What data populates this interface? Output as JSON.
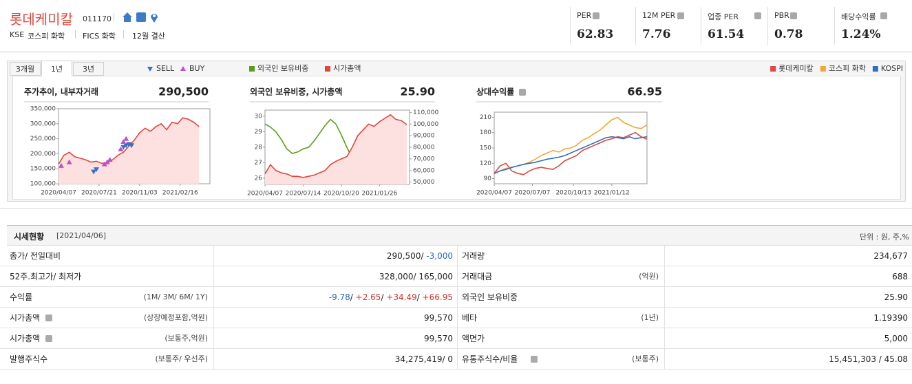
{
  "header": {
    "name": "롯데케미칼",
    "code": "011170",
    "market": "KSE",
    "sector": "코스피 화학",
    "fics": "FICS 화학",
    "fiscal": "12월 결산"
  },
  "stats": [
    {
      "label": "PER",
      "value": "62.83"
    },
    {
      "label": "12M PER",
      "value": "7.76"
    },
    {
      "label": "업종 PER",
      "value": "61.54"
    },
    {
      "label": "PBR",
      "value": "0.78"
    },
    {
      "label": "배당수익률",
      "value": "1.24%"
    }
  ],
  "tabs": [
    "3개월",
    "1년",
    "3년"
  ],
  "active_tab": 1,
  "chart_data": [
    {
      "type": "line",
      "title": "주가추이, 내부자거래",
      "headline": "290,500",
      "x": [
        0,
        2,
        4,
        6,
        8,
        10,
        12,
        14,
        16,
        18,
        20,
        22,
        24,
        26,
        28,
        30,
        32,
        34,
        36,
        38,
        40,
        42,
        44,
        46,
        48,
        50,
        52
      ],
      "xlim": [
        0,
        56
      ],
      "xticks": [
        {
          "value": 0,
          "label": "2020/04/07"
        },
        {
          "value": 15,
          "label": "2020/07/21"
        },
        {
          "value": 30,
          "label": "2020/11/03"
        },
        {
          "value": 45,
          "label": "2021/02/16"
        }
      ],
      "ylim": [
        100000,
        350000
      ],
      "yticks": [
        {
          "value": 100000,
          "label": "100,000"
        },
        {
          "value": 150000,
          "label": "150,000"
        },
        {
          "value": 200000,
          "label": "200,000"
        },
        {
          "value": 250000,
          "label": "250,000"
        },
        {
          "value": 300000,
          "label": "300,000"
        },
        {
          "value": 350000,
          "label": "350,000"
        }
      ],
      "series": [
        {
          "color": "#e0463c",
          "fill": "#fde0e0",
          "values": [
            165000,
            195000,
            205000,
            190000,
            185000,
            180000,
            172000,
            175000,
            168000,
            170000,
            180000,
            195000,
            205000,
            225000,
            245000,
            270000,
            285000,
            275000,
            290000,
            300000,
            280000,
            305000,
            300000,
            320000,
            315000,
            305000,
            290500
          ]
        },
        {
          "name": "SELL",
          "color": "#3a6fc4",
          "marker": "down",
          "x": [
            13,
            14,
            24,
            25,
            26,
            27
          ],
          "values": [
            140000,
            148000,
            222000,
            228000,
            232000,
            228000
          ]
        },
        {
          "name": "BUY",
          "color": "#c050c8",
          "marker": "up",
          "x": [
            1,
            4,
            17,
            18,
            19,
            23,
            24,
            25
          ],
          "values": [
            160000,
            172000,
            165000,
            172000,
            180000,
            215000,
            240000,
            250000
          ]
        }
      ]
    },
    {
      "type": "line",
      "title": "외국인 보유비중, 시가총액",
      "headline": "25.90",
      "x": [
        0,
        2,
        4,
        6,
        8,
        10,
        12,
        14,
        16,
        18,
        20,
        22,
        24,
        26,
        28,
        30,
        32,
        34,
        36,
        38,
        40,
        42,
        44,
        46,
        48,
        50,
        52
      ],
      "xlim": [
        0,
        53
      ],
      "xticks": [
        {
          "value": 0,
          "label": "2020/04/07"
        },
        {
          "value": 14,
          "label": "2020/07/14"
        },
        {
          "value": 28,
          "label": "2020/10/20"
        },
        {
          "value": 42,
          "label": "2021/01/26"
        }
      ],
      "ylim": [
        25.6,
        30.4
      ],
      "yticks": [
        26,
        27,
        28,
        29,
        30
      ],
      "y2lim": [
        48000,
        112000
      ],
      "y2ticks": [
        {
          "value": 50000,
          "label": "50,000"
        },
        {
          "value": 60000,
          "label": "60,000"
        },
        {
          "value": 70000,
          "label": "70,000"
        },
        {
          "value": 80000,
          "label": "80,000"
        },
        {
          "value": 90000,
          "label": "90,000"
        },
        {
          "value": 100000,
          "label": "100,000"
        },
        {
          "value": 110000,
          "label": "110,000"
        }
      ],
      "series": [
        {
          "name": "외국인 보유비중",
          "color": "#5a9e1a",
          "values": [
            29.5,
            29.3,
            29.0,
            28.5,
            27.9,
            27.6,
            27.7,
            27.9,
            28.0,
            28.4,
            28.9,
            29.4,
            29.8,
            29.5,
            28.8,
            28.0,
            27.3,
            26.9,
            26.6,
            26.4,
            26.3,
            26.5,
            26.2,
            26.4,
            26.6,
            26.1,
            25.9
          ]
        },
        {
          "name": "시가총액",
          "color": "#e0463c",
          "fill": "#fde0e0",
          "axis": "y2",
          "values": [
            57000,
            65000,
            60000,
            58000,
            57000,
            55000,
            55000,
            54000,
            55000,
            56000,
            58000,
            60000,
            65000,
            68000,
            70000,
            72000,
            80000,
            90000,
            95000,
            100000,
            98000,
            102000,
            105000,
            108000,
            104000,
            103000,
            99570
          ]
        }
      ]
    },
    {
      "type": "line",
      "title": "상대수익률",
      "headline": "66.95",
      "x": [
        0,
        2,
        4,
        6,
        8,
        10,
        12,
        14,
        16,
        18,
        20,
        22,
        24,
        26,
        28,
        30,
        32,
        34,
        36,
        38,
        40,
        42,
        44,
        46,
        48,
        50,
        52
      ],
      "xlim": [
        0,
        52
      ],
      "xticks": [
        {
          "value": 0,
          "label": "2020/04/07"
        },
        {
          "value": 13,
          "label": "2020/07/07"
        },
        {
          "value": 27,
          "label": "2020/10/13"
        },
        {
          "value": 40,
          "label": "2021/01/12"
        }
      ],
      "ylim": [
        80,
        220
      ],
      "yticks": [
        90,
        120,
        150,
        180,
        210
      ],
      "series": [
        {
          "name": "롯데케미칼",
          "color": "#e0463c",
          "values": [
            100,
            115,
            120,
            105,
            100,
            98,
            105,
            110,
            112,
            110,
            108,
            115,
            125,
            130,
            135,
            145,
            150,
            155,
            160,
            165,
            168,
            172,
            170,
            175,
            180,
            172,
            167
          ]
        },
        {
          "name": "코스피 화학",
          "color": "#f0a830",
          "values": [
            100,
            105,
            110,
            112,
            115,
            118,
            122,
            128,
            135,
            140,
            145,
            142,
            148,
            150,
            155,
            165,
            170,
            178,
            185,
            195,
            205,
            210,
            200,
            195,
            190,
            188,
            195
          ]
        },
        {
          "name": "KOSPI",
          "color": "#2f6fc0",
          "values": [
            100,
            105,
            108,
            112,
            115,
            118,
            120,
            122,
            125,
            128,
            130,
            132,
            135,
            140,
            145,
            150,
            155,
            160,
            165,
            170,
            172,
            170,
            168,
            172,
            168,
            170,
            172
          ]
        }
      ]
    }
  ],
  "table": {
    "title": "시세현황",
    "date": "[2021/04/06]",
    "unit": "단위 : 원, 주,%",
    "rows": [
      [
        {
          "label": "종가/ 전일대비"
        },
        {
          "parts": [
            {
              "text": "290,500/ "
            },
            {
              "text": "-3,000",
              "color": "#2a62c8"
            }
          ]
        },
        {
          "label": "거래량"
        },
        {
          "parts": [
            {
              "text": "234,677"
            }
          ]
        }
      ],
      [
        {
          "label": "52주.최고가/ 최저가"
        },
        {
          "parts": [
            {
              "text": "328,000/ 165,000"
            }
          ]
        },
        {
          "label": "거래대금",
          "note": "(억원)"
        },
        {
          "parts": [
            {
              "text": "688"
            }
          ]
        }
      ],
      [
        {
          "label": "수익률",
          "note": "(1M/ 3M/ 6M/ 1Y)"
        },
        {
          "parts": [
            {
              "text": "-9.78",
              "color": "#2a62c8"
            },
            {
              "text": "/ "
            },
            {
              "text": "+2.65",
              "color": "#d9302a"
            },
            {
              "text": "/ "
            },
            {
              "text": "+34.49",
              "color": "#d9302a"
            },
            {
              "text": "/ "
            },
            {
              "text": "+66.95",
              "color": "#d9302a"
            }
          ]
        },
        {
          "label": "외국인 보유비중"
        },
        {
          "parts": [
            {
              "text": "25.90"
            }
          ]
        }
      ],
      [
        {
          "label": "시가총액",
          "help": true,
          "note": "(상장예정포함,억원)"
        },
        {
          "parts": [
            {
              "text": "99,570"
            }
          ]
        },
        {
          "label": "베타",
          "note": "(1년)"
        },
        {
          "parts": [
            {
              "text": "1.19390"
            }
          ]
        }
      ],
      [
        {
          "label": "시가총액",
          "help": true,
          "note": "(보통주,억원)"
        },
        {
          "parts": [
            {
              "text": "99,570"
            }
          ]
        },
        {
          "label": "액면가"
        },
        {
          "parts": [
            {
              "text": "5,000"
            }
          ]
        }
      ],
      [
        {
          "label": "발행주식수",
          "note": "(보통주/ 우선주)"
        },
        {
          "parts": [
            {
              "text": "34,275,419/ 0"
            }
          ]
        },
        {
          "label": "유통주식수/비율",
          "help": true,
          "note": "(보통주)"
        },
        {
          "parts": [
            {
              "text": "15,451,303 / 45.08"
            }
          ]
        }
      ]
    ]
  }
}
